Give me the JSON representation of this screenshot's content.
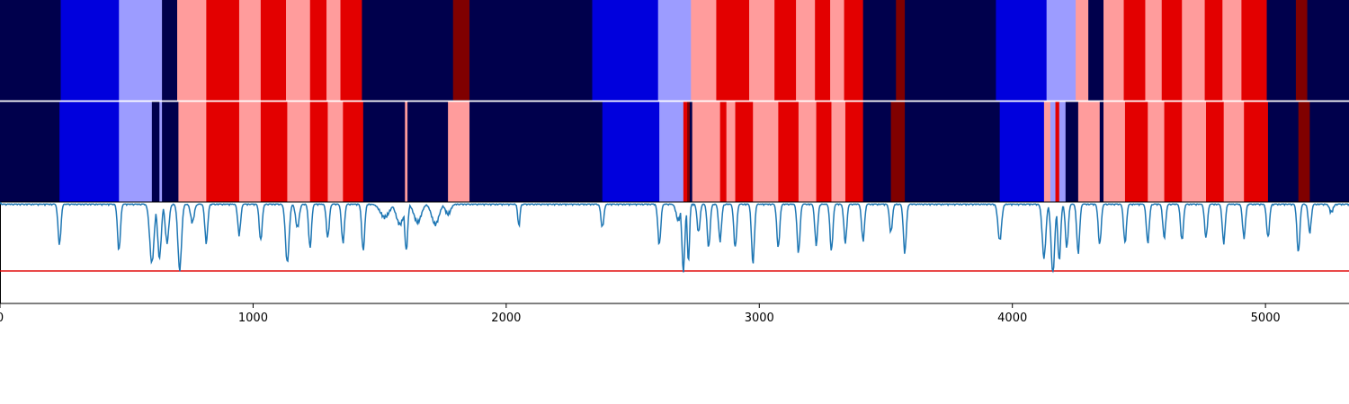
{
  "chart_data": [
    {
      "type": "heatmap",
      "row": "top",
      "xlim": [
        0,
        5330
      ],
      "colors": {
        "0": "#00004c",
        "1": "#0000dd",
        "2": "#9c9cff",
        "3": "#ff9c9c",
        "4": "#e30000",
        "5": "#800000"
      },
      "segments": [
        [
          0,
          240,
          0
        ],
        [
          240,
          470,
          1
        ],
        [
          470,
          640,
          2
        ],
        [
          640,
          700,
          0
        ],
        [
          700,
          815,
          3
        ],
        [
          815,
          945,
          4
        ],
        [
          945,
          1030,
          3
        ],
        [
          1030,
          1130,
          4
        ],
        [
          1130,
          1225,
          3
        ],
        [
          1225,
          1290,
          4
        ],
        [
          1290,
          1345,
          3
        ],
        [
          1345,
          1430,
          4
        ],
        [
          1430,
          1790,
          0
        ],
        [
          1790,
          1855,
          5
        ],
        [
          1855,
          2340,
          0
        ],
        [
          2340,
          2600,
          1
        ],
        [
          2600,
          2730,
          2
        ],
        [
          2730,
          2830,
          3
        ],
        [
          2830,
          2960,
          4
        ],
        [
          2960,
          3060,
          3
        ],
        [
          3060,
          3145,
          4
        ],
        [
          3145,
          3220,
          3
        ],
        [
          3220,
          3280,
          4
        ],
        [
          3280,
          3335,
          3
        ],
        [
          3335,
          3410,
          4
        ],
        [
          3410,
          3540,
          0
        ],
        [
          3540,
          3575,
          5
        ],
        [
          3575,
          3935,
          0
        ],
        [
          3935,
          4135,
          1
        ],
        [
          4135,
          4250,
          2
        ],
        [
          4250,
          4300,
          3
        ],
        [
          4300,
          4360,
          0
        ],
        [
          4360,
          4440,
          3
        ],
        [
          4440,
          4525,
          4
        ],
        [
          4525,
          4590,
          3
        ],
        [
          4590,
          4670,
          4
        ],
        [
          4670,
          4760,
          3
        ],
        [
          4760,
          4830,
          4
        ],
        [
          4830,
          4905,
          3
        ],
        [
          4905,
          5005,
          4
        ],
        [
          5005,
          5120,
          0
        ],
        [
          5120,
          5165,
          5
        ],
        [
          5165,
          5330,
          0
        ]
      ]
    },
    {
      "type": "heatmap",
      "row": "middle",
      "xlim": [
        0,
        5330
      ],
      "colors": {
        "0": "#00004c",
        "1": "#0000dd",
        "2": "#9c9cff",
        "3": "#ff9c9c",
        "4": "#e30000",
        "5": "#800000"
      },
      "segments": [
        [
          0,
          235,
          0
        ],
        [
          235,
          470,
          1
        ],
        [
          470,
          600,
          2
        ],
        [
          600,
          630,
          0
        ],
        [
          630,
          640,
          2
        ],
        [
          640,
          705,
          0
        ],
        [
          705,
          815,
          3
        ],
        [
          815,
          945,
          4
        ],
        [
          945,
          1030,
          3
        ],
        [
          1030,
          1135,
          4
        ],
        [
          1135,
          1225,
          3
        ],
        [
          1225,
          1295,
          4
        ],
        [
          1295,
          1355,
          3
        ],
        [
          1355,
          1435,
          4
        ],
        [
          1435,
          1600,
          0
        ],
        [
          1600,
          1610,
          3
        ],
        [
          1610,
          1770,
          0
        ],
        [
          1770,
          1855,
          3
        ],
        [
          1855,
          2380,
          0
        ],
        [
          2380,
          2605,
          1
        ],
        [
          2605,
          2700,
          2
        ],
        [
          2700,
          2715,
          4
        ],
        [
          2715,
          2725,
          5
        ],
        [
          2725,
          2735,
          0
        ],
        [
          2735,
          2845,
          3
        ],
        [
          2845,
          2870,
          4
        ],
        [
          2870,
          2905,
          3
        ],
        [
          2905,
          2975,
          4
        ],
        [
          2975,
          3075,
          3
        ],
        [
          3075,
          3155,
          4
        ],
        [
          3155,
          3225,
          3
        ],
        [
          3225,
          3285,
          4
        ],
        [
          3285,
          3340,
          3
        ],
        [
          3340,
          3410,
          4
        ],
        [
          3410,
          3520,
          0
        ],
        [
          3520,
          3575,
          5
        ],
        [
          3575,
          3950,
          0
        ],
        [
          3950,
          4125,
          1
        ],
        [
          4125,
          4150,
          3
        ],
        [
          4150,
          4170,
          2
        ],
        [
          4170,
          4185,
          4
        ],
        [
          4185,
          4210,
          2
        ],
        [
          4210,
          4260,
          0
        ],
        [
          4260,
          4345,
          3
        ],
        [
          4345,
          4360,
          0
        ],
        [
          4360,
          4445,
          3
        ],
        [
          4445,
          4535,
          4
        ],
        [
          4535,
          4600,
          3
        ],
        [
          4600,
          4670,
          4
        ],
        [
          4670,
          4765,
          3
        ],
        [
          4765,
          4835,
          4
        ],
        [
          4835,
          4915,
          3
        ],
        [
          4915,
          5010,
          4
        ],
        [
          5010,
          5130,
          0
        ],
        [
          5130,
          5175,
          5
        ],
        [
          5175,
          5330,
          0
        ]
      ]
    },
    {
      "type": "line",
      "row": "bottom",
      "xlim": [
        0,
        5330
      ],
      "ylim": [
        -1.0,
        0.0
      ],
      "series_color": "#1f77b4",
      "threshold": {
        "value": -0.68,
        "color": "#e00000"
      },
      "baseline": -0.02,
      "spikes": [
        [
          235,
          -0.42,
          8
        ],
        [
          470,
          -0.48,
          8
        ],
        [
          600,
          -0.6,
          12
        ],
        [
          630,
          -0.55,
          10
        ],
        [
          660,
          -0.4,
          10
        ],
        [
          710,
          -0.67,
          10
        ],
        [
          760,
          -0.2,
          10
        ],
        [
          815,
          -0.4,
          8
        ],
        [
          945,
          -0.32,
          8
        ],
        [
          1030,
          -0.38,
          8
        ],
        [
          1135,
          -0.6,
          10
        ],
        [
          1175,
          -0.25,
          10
        ],
        [
          1225,
          -0.45,
          8
        ],
        [
          1295,
          -0.35,
          8
        ],
        [
          1355,
          -0.4,
          8
        ],
        [
          1435,
          -0.48,
          8
        ],
        [
          1520,
          -0.15,
          25
        ],
        [
          1580,
          -0.22,
          20
        ],
        [
          1605,
          -0.48,
          8
        ],
        [
          1650,
          -0.2,
          20
        ],
        [
          1720,
          -0.22,
          20
        ],
        [
          1770,
          -0.12,
          15
        ],
        [
          2050,
          -0.24,
          6
        ],
        [
          2380,
          -0.25,
          8
        ],
        [
          2605,
          -0.42,
          8
        ],
        [
          2680,
          -0.18,
          12
        ],
        [
          2700,
          -0.68,
          8
        ],
        [
          2720,
          -0.6,
          6
        ],
        [
          2760,
          -0.3,
          8
        ],
        [
          2800,
          -0.45,
          8
        ],
        [
          2845,
          -0.38,
          8
        ],
        [
          2905,
          -0.45,
          8
        ],
        [
          2975,
          -0.6,
          8
        ],
        [
          3075,
          -0.45,
          8
        ],
        [
          3155,
          -0.5,
          8
        ],
        [
          3225,
          -0.42,
          8
        ],
        [
          3285,
          -0.48,
          8
        ],
        [
          3340,
          -0.4,
          8
        ],
        [
          3410,
          -0.38,
          8
        ],
        [
          3520,
          -0.3,
          8
        ],
        [
          3575,
          -0.5,
          8
        ],
        [
          3950,
          -0.38,
          10
        ],
        [
          4125,
          -0.55,
          10
        ],
        [
          4160,
          -0.7,
          10
        ],
        [
          4185,
          -0.58,
          8
        ],
        [
          4215,
          -0.45,
          8
        ],
        [
          4260,
          -0.5,
          8
        ],
        [
          4345,
          -0.42,
          8
        ],
        [
          4445,
          -0.4,
          8
        ],
        [
          4535,
          -0.4,
          8
        ],
        [
          4600,
          -0.35,
          8
        ],
        [
          4670,
          -0.38,
          8
        ],
        [
          4765,
          -0.35,
          8
        ],
        [
          4835,
          -0.4,
          8
        ],
        [
          4915,
          -0.35,
          8
        ],
        [
          5010,
          -0.35,
          8
        ],
        [
          5130,
          -0.5,
          8
        ],
        [
          5175,
          -0.3,
          8
        ],
        [
          5260,
          -0.1,
          10
        ]
      ],
      "xticks": [
        0,
        1000,
        2000,
        3000,
        4000,
        5000
      ],
      "tick_labels": [
        "0",
        "1000",
        "2000",
        "3000",
        "4000",
        "5000"
      ]
    }
  ]
}
